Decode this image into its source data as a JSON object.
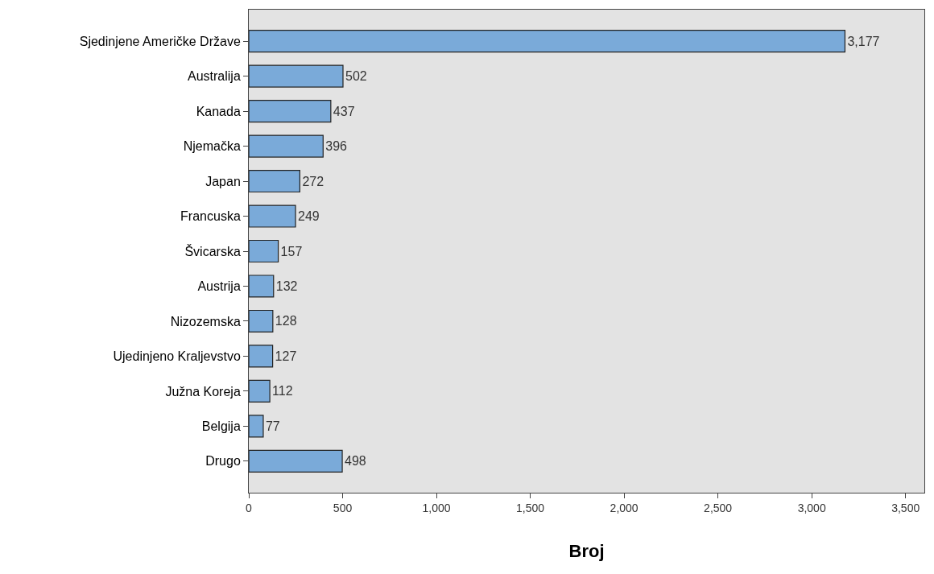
{
  "chart_data": {
    "type": "bar",
    "orientation": "horizontal",
    "xlabel": "Broj",
    "categories": [
      "Sjedinjene Američke Države",
      "Australija",
      "Kanada",
      "Njemačka",
      "Japan",
      "Francuska",
      "Švicarska",
      "Austrija",
      "Nizozemska",
      "Ujedinjeno Kraljevstvo",
      "Južna Koreja",
      "Belgija",
      "Drugo"
    ],
    "values": [
      3177,
      502,
      437,
      396,
      272,
      249,
      157,
      132,
      128,
      127,
      112,
      77,
      498
    ],
    "value_labels": [
      "3,177",
      "502",
      "437",
      "396",
      "272",
      "249",
      "157",
      "132",
      "128",
      "127",
      "112",
      "77",
      "498"
    ],
    "color": "#7aaad9",
    "xlim": [
      0,
      3600
    ],
    "xticks": [
      0,
      500,
      {
        "value": 1000,
        "label": "1,000"
      },
      {
        "value": 1500,
        "label": "1,500"
      },
      {
        "value": 2000,
        "label": "2,000"
      },
      {
        "value": 2500,
        "label": "2,500"
      },
      {
        "value": 3000,
        "label": "3,000"
      },
      {
        "value": 3500,
        "label": "3,500"
      }
    ],
    "grid": false
  }
}
